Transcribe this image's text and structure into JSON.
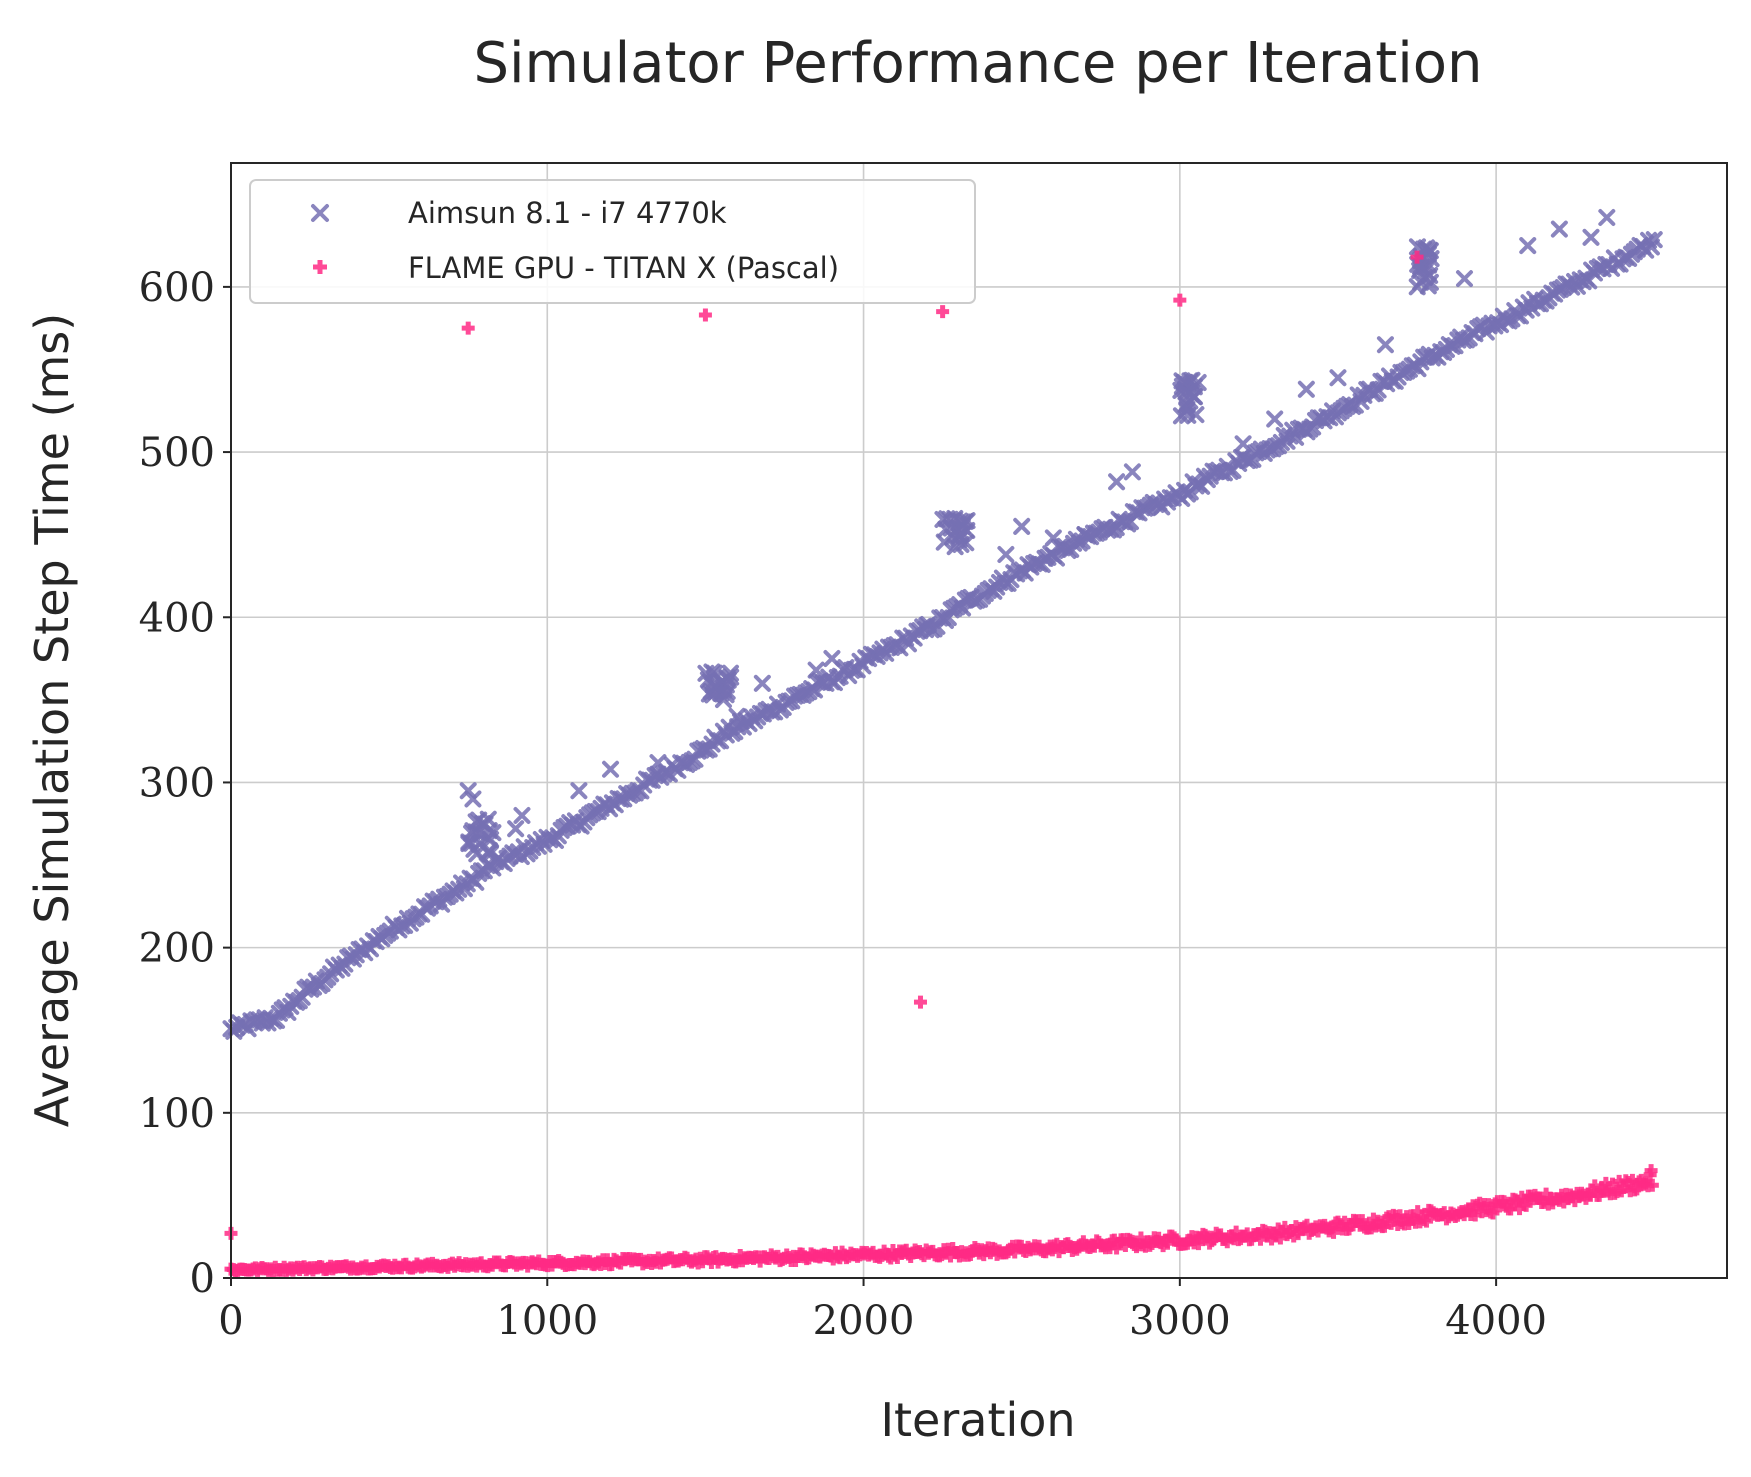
{
  "chart_data": {
    "type": "scatter",
    "title": "Simulator Performance per Iteration",
    "xlabel": "Iteration",
    "ylabel": "Average Simulation Step Time (ms)",
    "xlim": [
      0,
      4730
    ],
    "ylim": [
      0,
      675
    ],
    "xticks": [
      0,
      1000,
      2000,
      3000,
      4000
    ],
    "yticks": [
      0,
      100,
      200,
      300,
      400,
      500,
      600
    ],
    "grid": true,
    "legend_position": "upper-left",
    "series": [
      {
        "name": "Aimsun 8.1 - i7 4770k",
        "color": "#7570b3",
        "marker": "x",
        "trend": [
          [
            0,
            150
          ],
          [
            150,
            158
          ],
          [
            250,
            175
          ],
          [
            500,
            210
          ],
          [
            760,
            240
          ],
          [
            800,
            247
          ],
          [
            1000,
            265
          ],
          [
            1250,
            292
          ],
          [
            1500,
            320
          ],
          [
            1550,
            328
          ],
          [
            1750,
            348
          ],
          [
            2000,
            372
          ],
          [
            2250,
            398
          ],
          [
            2300,
            406
          ],
          [
            2500,
            428
          ],
          [
            2750,
            452
          ],
          [
            3000,
            474
          ],
          [
            3050,
            480
          ],
          [
            3250,
            500
          ],
          [
            3500,
            525
          ],
          [
            3750,
            553
          ],
          [
            3800,
            558
          ],
          [
            4000,
            578
          ],
          [
            4250,
            602
          ],
          [
            4500,
            628
          ]
        ],
        "outlier_clusters": [
          {
            "x": [
              750,
              830
            ],
            "y": [
              255,
              280
            ]
          },
          {
            "x": [
              1500,
              1580
            ],
            "y": [
              350,
              368
            ]
          },
          {
            "x": [
              2250,
              2330
            ],
            "y": [
              440,
              460
            ]
          },
          {
            "x": [
              3000,
              3060
            ],
            "y": [
              520,
              545
            ]
          },
          {
            "x": [
              3750,
              3800
            ],
            "y": [
              600,
              625
            ]
          }
        ],
        "outliers": [
          [
            750,
            295
          ],
          [
            765,
            290
          ],
          [
            900,
            272
          ],
          [
            920,
            280
          ],
          [
            1100,
            295
          ],
          [
            1200,
            308
          ],
          [
            1350,
            312
          ],
          [
            1600,
            340
          ],
          [
            1680,
            360
          ],
          [
            1850,
            368
          ],
          [
            1900,
            375
          ],
          [
            2200,
            395
          ],
          [
            2450,
            438
          ],
          [
            2500,
            455
          ],
          [
            2600,
            448
          ],
          [
            2700,
            450
          ],
          [
            2800,
            482
          ],
          [
            2850,
            488
          ],
          [
            3200,
            505
          ],
          [
            3300,
            520
          ],
          [
            3400,
            538
          ],
          [
            3500,
            545
          ],
          [
            3650,
            565
          ],
          [
            3900,
            605
          ],
          [
            4100,
            625
          ],
          [
            4200,
            635
          ],
          [
            4300,
            630
          ],
          [
            4350,
            642
          ]
        ]
      },
      {
        "name": "FLAME GPU - TITAN X (Pascal)",
        "color": "#ff2a85",
        "marker": "P",
        "trend": [
          [
            0,
            5
          ],
          [
            500,
            7
          ],
          [
            1000,
            9
          ],
          [
            1500,
            11
          ],
          [
            2000,
            14
          ],
          [
            2500,
            17
          ],
          [
            3000,
            23
          ],
          [
            3250,
            26
          ],
          [
            3500,
            31
          ],
          [
            3750,
            37
          ],
          [
            4000,
            43
          ],
          [
            4250,
            50
          ],
          [
            4500,
            59
          ]
        ],
        "outliers": [
          [
            0,
            27
          ],
          [
            750,
            575
          ],
          [
            1500,
            583
          ],
          [
            2180,
            167
          ],
          [
            2250,
            585
          ],
          [
            3000,
            592
          ],
          [
            3750,
            618
          ],
          [
            4490,
            65
          ]
        ]
      }
    ]
  }
}
